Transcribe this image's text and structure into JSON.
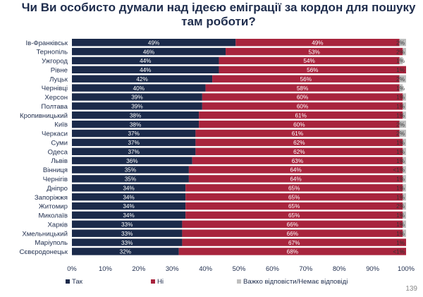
{
  "page": {
    "number": "139"
  },
  "chart_data": {
    "type": "bar",
    "orientation": "horizontal",
    "stacked": true,
    "title": "Чи Ви особисто думали над ідеєю еміграції за кордон для пошуку там роботи?",
    "categories": [
      "Ів-Франківськ",
      "Тернопіль",
      "Ужгород",
      "Рівне",
      "Луцьк",
      "Чернівці",
      "Херсон",
      "Полтава",
      "Кропивницький",
      "Київ",
      "Черкаси",
      "Суми",
      "Одеса",
      "Львів",
      "Вінниця",
      "Чернігів",
      "Дніпро",
      "Запоріжжя",
      "Житомир",
      "Миколаїв",
      "Харків",
      "Хмельницький",
      "Маріуполь",
      "Сєвєродонецьк"
    ],
    "series": [
      {
        "name": "Так",
        "color": "#1b2a4a",
        "values": [
          49,
          46,
          44,
          44,
          42,
          40,
          39,
          39,
          38,
          38,
          37,
          37,
          37,
          36,
          35,
          35,
          34,
          34,
          34,
          34,
          33,
          33,
          33,
          32
        ],
        "labels": [
          "49%",
          "46%",
          "44%",
          "44%",
          "42%",
          "40%",
          "39%",
          "39%",
          "38%",
          "38%",
          "37%",
          "37%",
          "37%",
          "36%",
          "35%",
          "35%",
          "34%",
          "34%",
          "34%",
          "34%",
          "33%",
          "33%",
          "33%",
          "32%"
        ]
      },
      {
        "name": "Ні",
        "color": "#a8243d",
        "values": [
          49,
          53,
          54,
          56,
          56,
          58,
          60,
          60,
          61,
          60,
          61,
          62,
          62,
          63,
          64,
          64,
          65,
          65,
          65,
          65,
          66,
          66,
          67,
          68
        ],
        "labels": [
          "49%",
          "53%",
          "54%",
          "56%",
          "56%",
          "58%",
          "60%",
          "60%",
          "61%",
          "60%",
          "61%",
          "62%",
          "62%",
          "63%",
          "64%",
          "64%",
          "65%",
          "65%",
          "65%",
          "65%",
          "66%",
          "66%",
          "67%",
          "68%"
        ]
      },
      {
        "name": "Важко відповісти/Немає відповіді",
        "color": "#bfbfbf",
        "values": [
          2,
          2,
          1,
          1,
          2,
          1,
          1,
          1,
          1,
          2,
          2,
          1,
          1,
          1,
          1,
          1,
          1,
          1,
          2,
          1,
          1,
          1,
          1,
          1
        ],
        "labels": [
          "2%",
          "2%",
          "1%",
          "1%",
          "2%",
          "1%",
          "1%",
          "1%",
          "1%",
          "2%",
          "2%",
          "1%",
          "1%",
          "1%",
          "<1%",
          "1%",
          "1%",
          "1%",
          "2%",
          "1%",
          "1%",
          "1%",
          "1%",
          "<1%"
        ]
      }
    ],
    "x_ticks": [
      "0%",
      "10%",
      "20%",
      "30%",
      "40%",
      "50%",
      "60%",
      "70%",
      "80%",
      "90%",
      "100%"
    ],
    "xlim": [
      0,
      100
    ],
    "grid": false,
    "legend": "bottom"
  }
}
